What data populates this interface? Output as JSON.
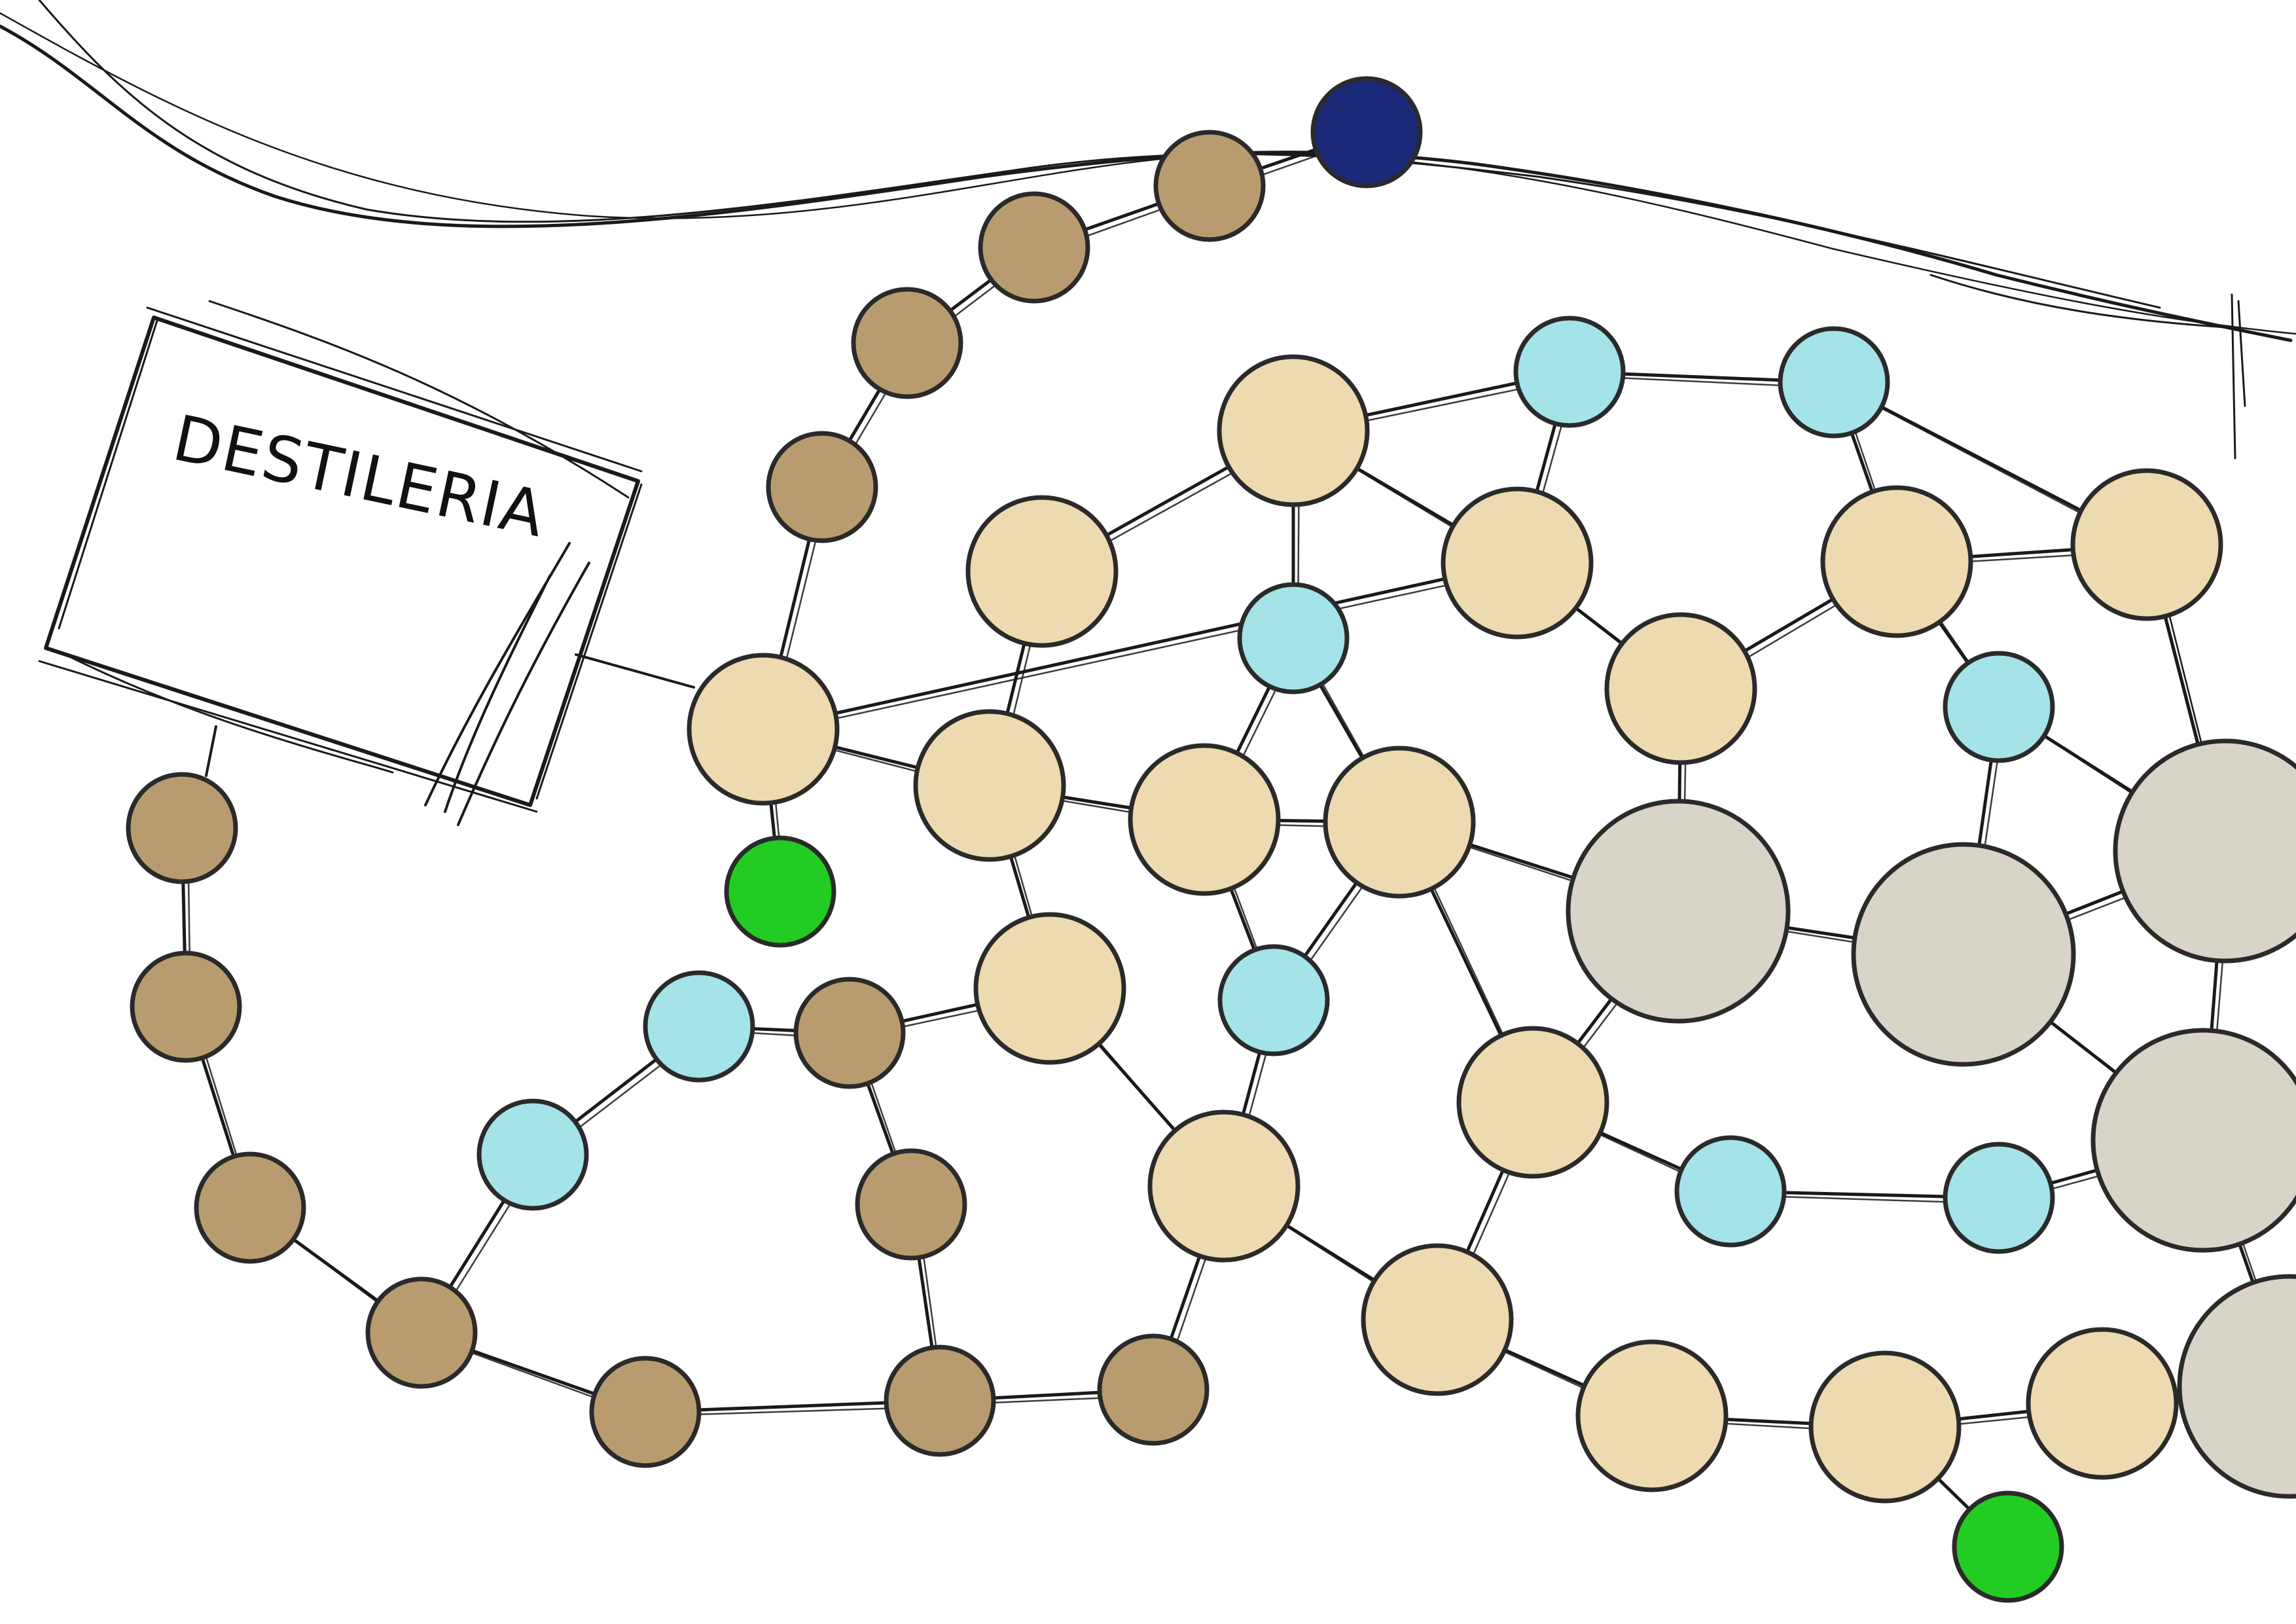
{
  "sign": {
    "label": "DESTILERIA"
  },
  "colors": {
    "brown": "#b89c70",
    "beige": "#eedab0",
    "cyan": "#a4e3e8",
    "gray": "#d8d4c8",
    "green": "#22cc22",
    "navy": "#1a2878",
    "stroke": "#2a2a2a"
  },
  "legend_note": "",
  "node_kinds": [
    "brown",
    "beige",
    "cyan",
    "gray",
    "green",
    "navy"
  ]
}
